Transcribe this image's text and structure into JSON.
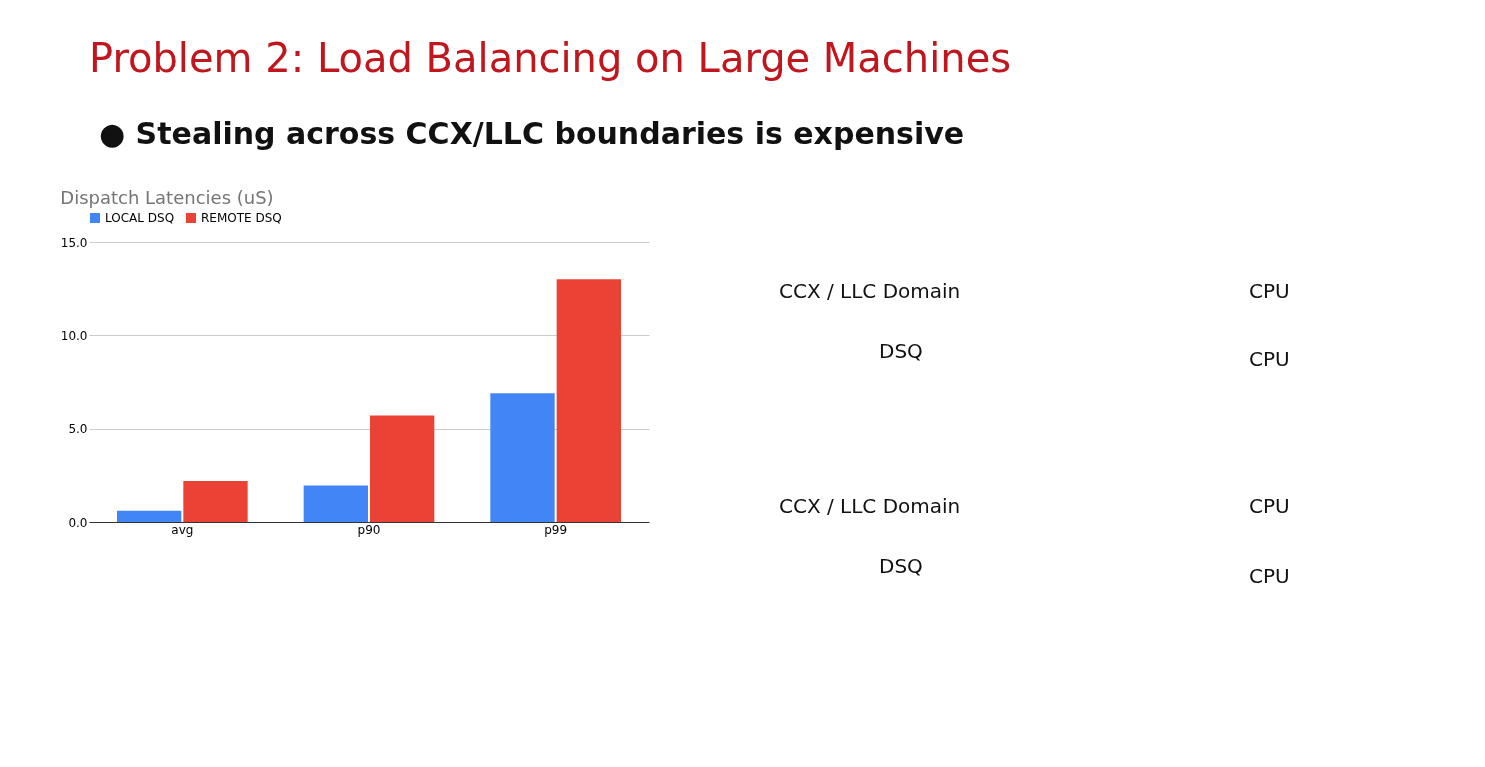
{
  "chart_data": [
    {
      "type": "other",
      "title": "Problem 2: Load Balancing on Large Machines",
      "annotations": [
        "●   Stealing across CCX/LLC boundaries is expensive"
      ]
    },
    {
      "type": "bar",
      "title": "Dispatch Latencies (uS)",
      "categories": [
        "avg",
        "p90",
        "p99"
      ],
      "series": [
        {
          "name": "LOCAL DSQ",
          "color": "#4285f4",
          "values": [
            0.6,
            1.95,
            6.9
          ]
        },
        {
          "name": "REMOTE DSQ",
          "color": "#ea4335",
          "values": [
            2.2,
            5.7,
            13.0
          ]
        }
      ],
      "ylim": [
        0,
        15
      ],
      "yticks": [
        {
          "value": 0,
          "label": "0.0"
        },
        {
          "value": 5,
          "label": "5.0"
        },
        {
          "value": 10,
          "label": "10.0"
        },
        {
          "value": 15,
          "label": "15.0"
        }
      ],
      "grid": "y",
      "legend": "top"
    },
    {
      "type": "other",
      "annotations": [
        "CCX / LLC Domain",
        "DSQ",
        "CCX / LLC Domain",
        "DSQ",
        "CPU",
        "CPU",
        "CPU",
        "CPU"
      ]
    }
  ]
}
